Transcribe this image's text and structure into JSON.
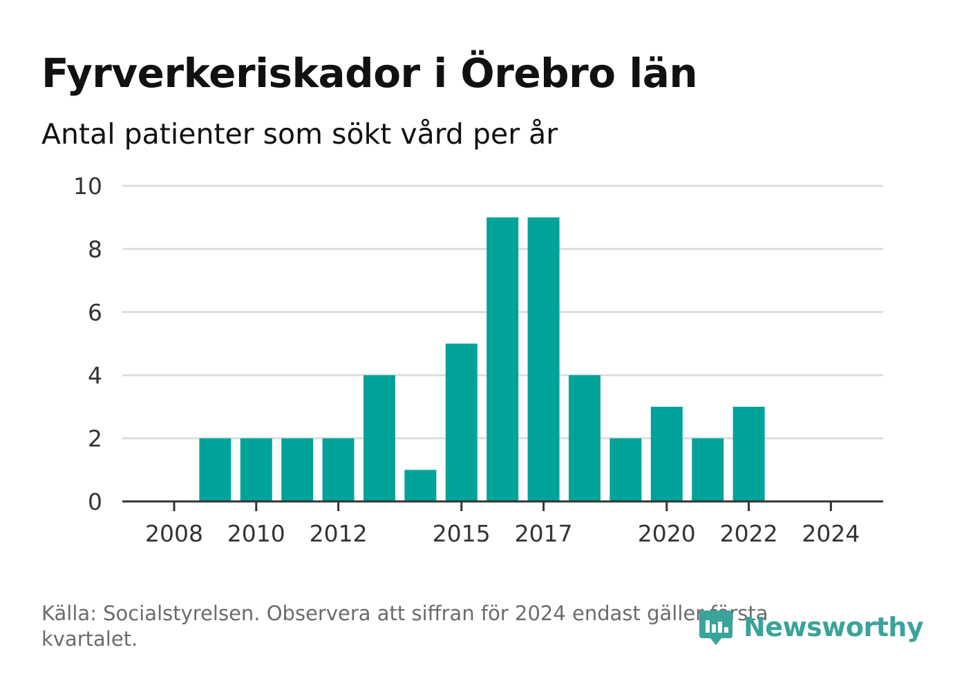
{
  "title": "Fyrverkeriskador i Örebro län",
  "subtitle": "Antal patienter som sökt vård per år",
  "source": "Källa: Socialstyrelsen. Observera att siffran för 2024 endast gäller första kvartalet.",
  "brand": {
    "name": "Newsworthy",
    "icon": "newsworthy-logo-icon"
  },
  "colors": {
    "bar": "#00a39a",
    "grid": "#dddddd",
    "axis": "#333333",
    "text": "#333333",
    "brand": "#3aa39a"
  },
  "chart_data": {
    "type": "bar",
    "title": "Fyrverkeriskador i Örebro län",
    "subtitle": "Antal patienter som sökt vård per år",
    "xlabel": "",
    "ylabel": "",
    "categories": [
      "2008",
      "2009",
      "2010",
      "2011",
      "2012",
      "2013",
      "2014",
      "2015",
      "2016",
      "2017",
      "2018",
      "2019",
      "2020",
      "2021",
      "2022",
      "2023",
      "2024"
    ],
    "values": [
      0,
      2,
      2,
      2,
      2,
      4,
      1,
      5,
      9,
      9,
      4,
      2,
      3,
      2,
      3,
      0,
      0
    ],
    "x_tick_labels": [
      "2008",
      "2010",
      "2012",
      "2015",
      "2017",
      "2020",
      "2022",
      "2024"
    ],
    "y_ticks": [
      "0",
      "2",
      "4",
      "6",
      "8",
      "10"
    ],
    "ylim": [
      0,
      10
    ],
    "grid": true,
    "legend": "none"
  }
}
